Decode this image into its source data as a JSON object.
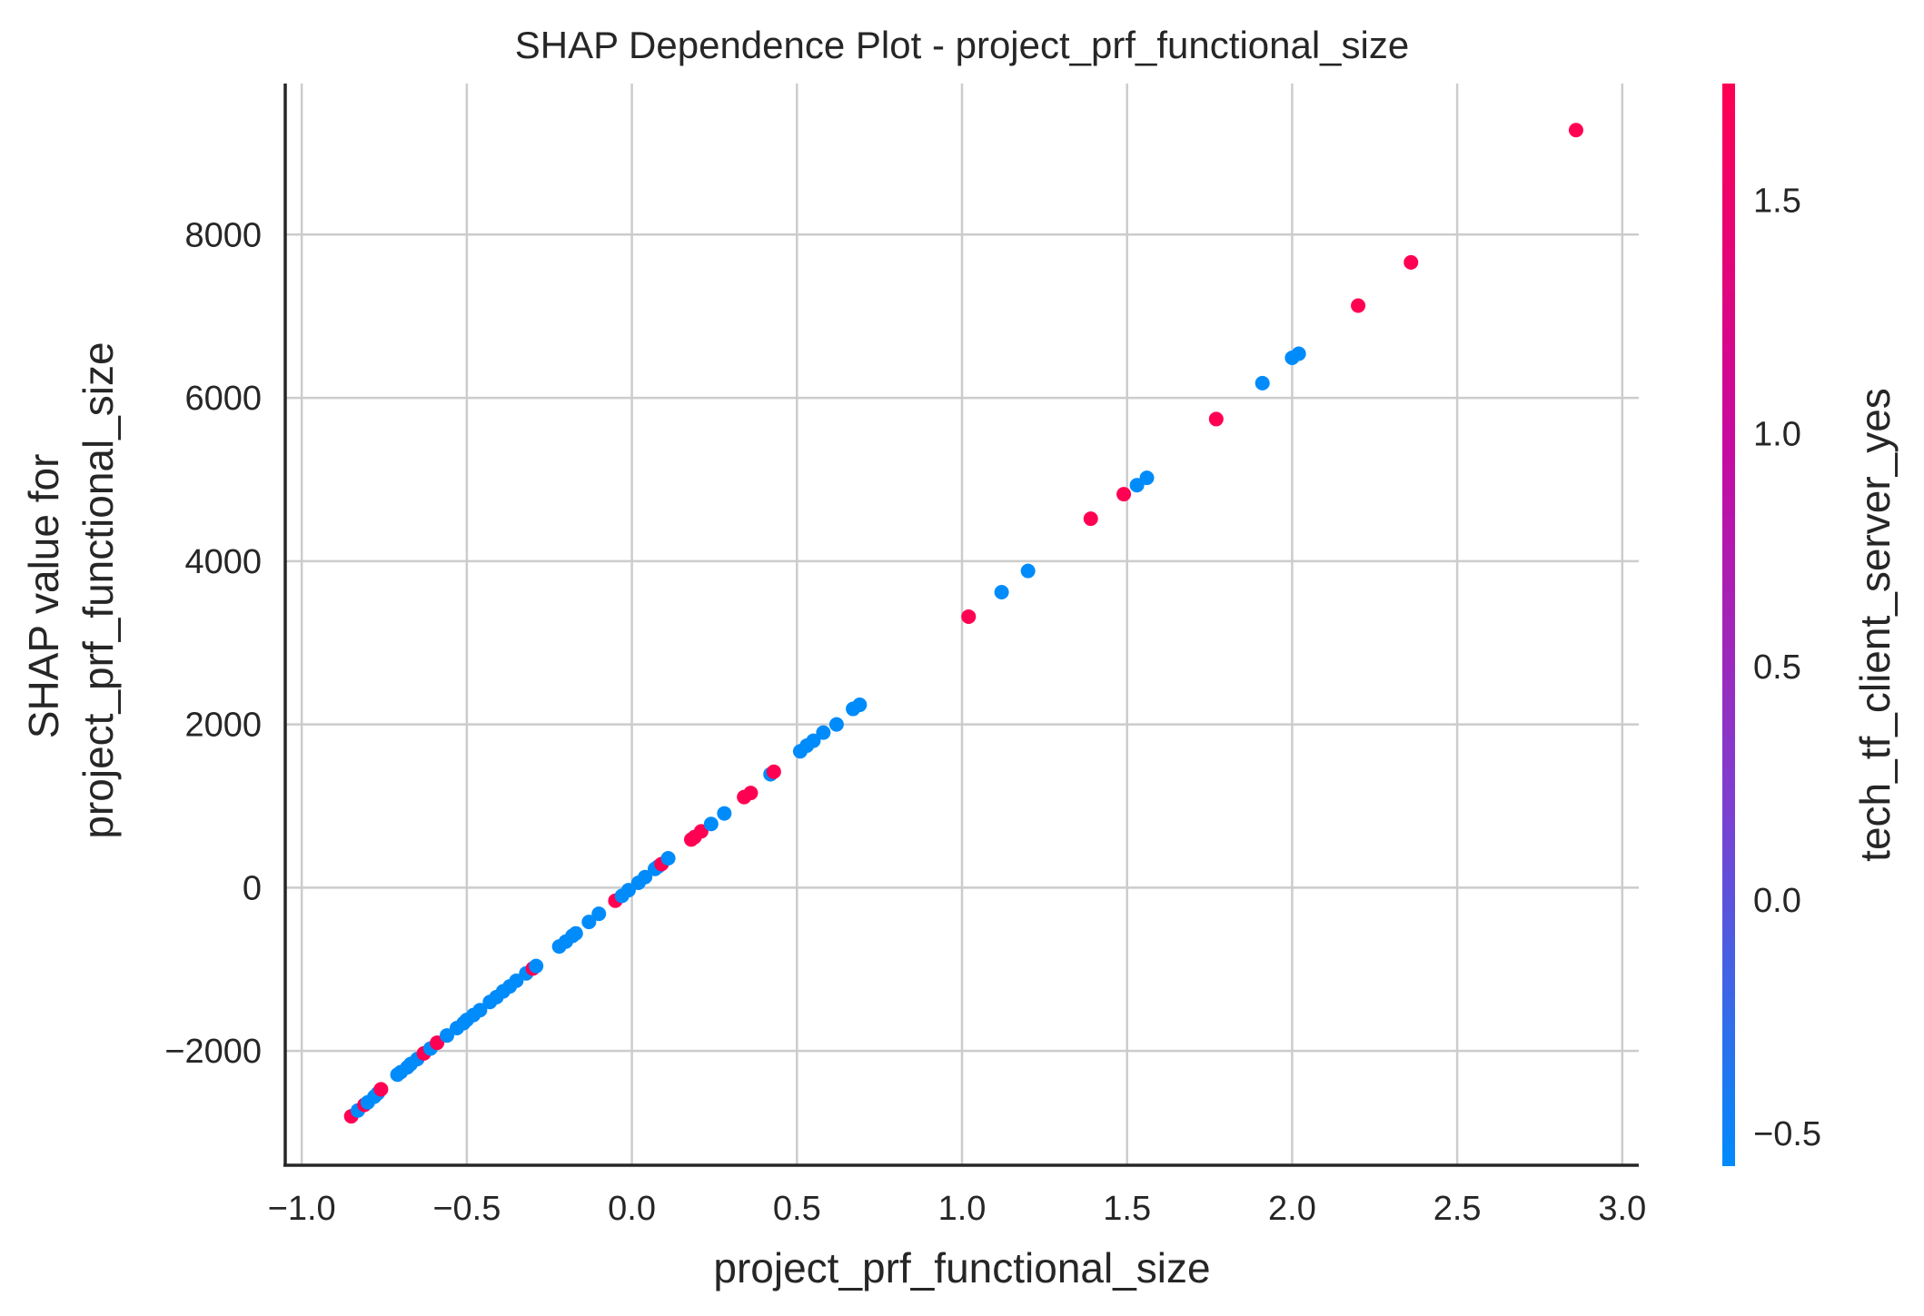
{
  "chart_data": {
    "type": "scatter",
    "title": "SHAP Dependence Plot - project_prf_functional_size",
    "xlabel": "project_prf_functional_size",
    "ylabel": [
      "SHAP value for",
      "project_prf_functional_size"
    ],
    "xlim": [
      -1.05,
      3.05
    ],
    "ylim": [
      -3400,
      9850
    ],
    "xticks": [
      -1.0,
      -0.5,
      0.0,
      0.5,
      1.0,
      1.5,
      2.0,
      2.5,
      3.0
    ],
    "xtick_labels": [
      "−1.0",
      "−0.5",
      "0.0",
      "0.5",
      "1.0",
      "1.5",
      "2.0",
      "2.5",
      "3.0"
    ],
    "yticks": [
      -2000,
      0,
      2000,
      4000,
      6000,
      8000
    ],
    "ytick_labels": [
      "−2000",
      "0",
      "2000",
      "4000",
      "6000",
      "8000"
    ],
    "grid": true,
    "legend": "none",
    "colorbar": {
      "label": "tech_tf_client_server_yes",
      "range": [
        -0.57,
        1.75
      ],
      "ticks": [
        -0.5,
        0.0,
        0.5,
        1.0,
        1.5
      ],
      "tick_labels": [
        "−0.5",
        "0.0",
        "0.5",
        "1.0",
        "1.5"
      ],
      "colors": [
        "#008bfb",
        "#7d3fd0",
        "#c70aa0",
        "#ff0052"
      ],
      "low_color": "#008bfb",
      "high_color": "#ff0052"
    },
    "points_color_values": {
      "low": -0.57,
      "high": 1.75
    },
    "points": [
      {
        "x": -0.85,
        "y": -2800,
        "c": 1.75
      },
      {
        "x": -0.83,
        "y": -2730,
        "c": -0.57
      },
      {
        "x": -0.81,
        "y": -2660,
        "c": 1.75
      },
      {
        "x": -0.8,
        "y": -2630,
        "c": -0.57
      },
      {
        "x": -0.78,
        "y": -2560,
        "c": -0.57
      },
      {
        "x": -0.77,
        "y": -2520,
        "c": -0.57
      },
      {
        "x": -0.76,
        "y": -2470,
        "c": 1.75
      },
      {
        "x": -0.71,
        "y": -2290,
        "c": -0.57
      },
      {
        "x": -0.7,
        "y": -2260,
        "c": -0.57
      },
      {
        "x": -0.68,
        "y": -2200,
        "c": -0.57
      },
      {
        "x": -0.67,
        "y": -2160,
        "c": -0.57
      },
      {
        "x": -0.65,
        "y": -2100,
        "c": -0.57
      },
      {
        "x": -0.63,
        "y": -2030,
        "c": 1.75
      },
      {
        "x": -0.61,
        "y": -1970,
        "c": -0.57
      },
      {
        "x": -0.59,
        "y": -1900,
        "c": 1.75
      },
      {
        "x": -0.56,
        "y": -1810,
        "c": -0.57
      },
      {
        "x": -0.53,
        "y": -1720,
        "c": -0.57
      },
      {
        "x": -0.51,
        "y": -1660,
        "c": -0.57
      },
      {
        "x": -0.5,
        "y": -1620,
        "c": -0.57
      },
      {
        "x": -0.48,
        "y": -1560,
        "c": -0.57
      },
      {
        "x": -0.46,
        "y": -1500,
        "c": -0.57
      },
      {
        "x": -0.43,
        "y": -1400,
        "c": -0.57
      },
      {
        "x": -0.41,
        "y": -1340,
        "c": -0.57
      },
      {
        "x": -0.39,
        "y": -1270,
        "c": -0.57
      },
      {
        "x": -0.37,
        "y": -1210,
        "c": -0.57
      },
      {
        "x": -0.35,
        "y": -1140,
        "c": -0.57
      },
      {
        "x": -0.32,
        "y": -1050,
        "c": -0.57
      },
      {
        "x": -0.3,
        "y": -990,
        "c": 1.75
      },
      {
        "x": -0.29,
        "y": -960,
        "c": -0.57
      },
      {
        "x": -0.22,
        "y": -720,
        "c": -0.57
      },
      {
        "x": -0.2,
        "y": -660,
        "c": -0.57
      },
      {
        "x": -0.18,
        "y": -590,
        "c": -0.57
      },
      {
        "x": -0.17,
        "y": -560,
        "c": -0.57
      },
      {
        "x": -0.13,
        "y": -420,
        "c": -0.57
      },
      {
        "x": -0.1,
        "y": -320,
        "c": -0.57
      },
      {
        "x": -0.05,
        "y": -160,
        "c": 1.75
      },
      {
        "x": -0.03,
        "y": -100,
        "c": -0.57
      },
      {
        "x": -0.01,
        "y": -30,
        "c": -0.57
      },
      {
        "x": 0.02,
        "y": 60,
        "c": -0.57
      },
      {
        "x": 0.04,
        "y": 130,
        "c": -0.57
      },
      {
        "x": 0.07,
        "y": 230,
        "c": -0.57
      },
      {
        "x": 0.08,
        "y": 260,
        "c": -0.57
      },
      {
        "x": 0.09,
        "y": 290,
        "c": 1.75
      },
      {
        "x": 0.11,
        "y": 360,
        "c": -0.57
      },
      {
        "x": 0.18,
        "y": 590,
        "c": 1.75
      },
      {
        "x": 0.19,
        "y": 620,
        "c": 1.75
      },
      {
        "x": 0.21,
        "y": 690,
        "c": 1.75
      },
      {
        "x": 0.24,
        "y": 780,
        "c": -0.57
      },
      {
        "x": 0.28,
        "y": 910,
        "c": -0.57
      },
      {
        "x": 0.34,
        "y": 1110,
        "c": 1.75
      },
      {
        "x": 0.36,
        "y": 1160,
        "c": 1.75
      },
      {
        "x": 0.42,
        "y": 1390,
        "c": -0.57
      },
      {
        "x": 0.43,
        "y": 1420,
        "c": 1.75
      },
      {
        "x": 0.51,
        "y": 1670,
        "c": -0.57
      },
      {
        "x": 0.53,
        "y": 1740,
        "c": -0.57
      },
      {
        "x": 0.55,
        "y": 1800,
        "c": -0.57
      },
      {
        "x": 0.58,
        "y": 1900,
        "c": -0.57
      },
      {
        "x": 0.62,
        "y": 2000,
        "c": -0.57
      },
      {
        "x": 0.67,
        "y": 2190,
        "c": -0.57
      },
      {
        "x": 0.69,
        "y": 2240,
        "c": -0.57
      },
      {
        "x": 1.02,
        "y": 3320,
        "c": 1.75
      },
      {
        "x": 1.12,
        "y": 3620,
        "c": -0.57
      },
      {
        "x": 1.2,
        "y": 3880,
        "c": -0.57
      },
      {
        "x": 1.39,
        "y": 4520,
        "c": 1.75
      },
      {
        "x": 1.49,
        "y": 4820,
        "c": 1.75
      },
      {
        "x": 1.53,
        "y": 4930,
        "c": -0.57
      },
      {
        "x": 1.56,
        "y": 5020,
        "c": -0.57
      },
      {
        "x": 1.77,
        "y": 5740,
        "c": 1.75
      },
      {
        "x": 1.91,
        "y": 6180,
        "c": -0.57
      },
      {
        "x": 2.0,
        "y": 6490,
        "c": -0.57
      },
      {
        "x": 2.02,
        "y": 6540,
        "c": -0.57
      },
      {
        "x": 2.2,
        "y": 7130,
        "c": 1.75
      },
      {
        "x": 2.36,
        "y": 7660,
        "c": 1.75
      },
      {
        "x": 2.86,
        "y": 9280,
        "c": 1.75
      }
    ]
  }
}
